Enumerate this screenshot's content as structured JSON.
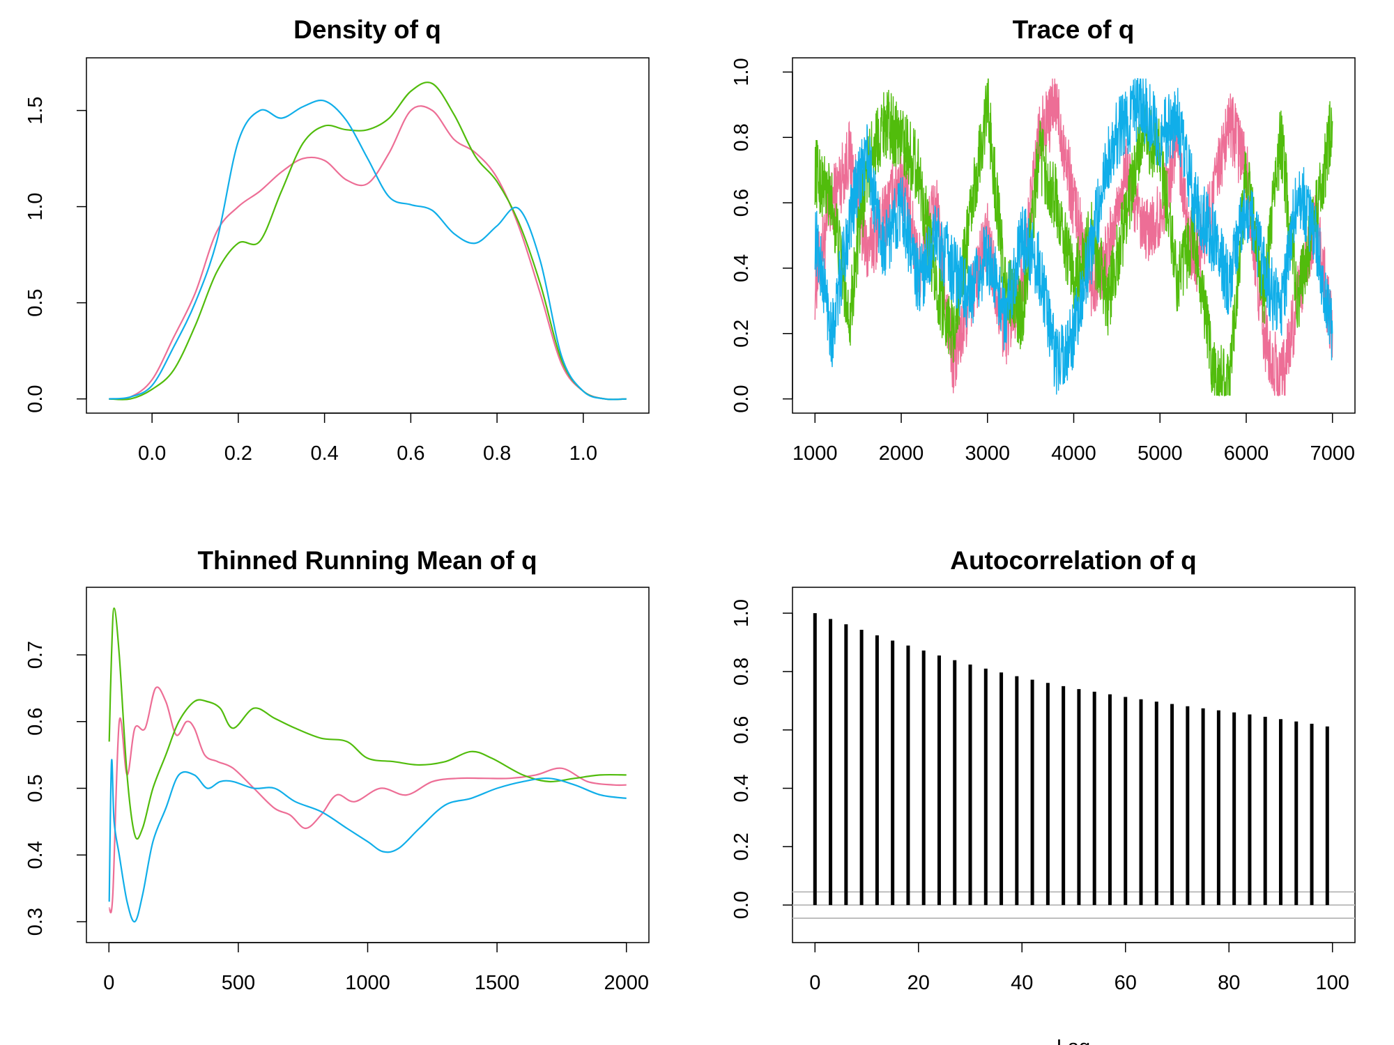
{
  "colors": {
    "chain1": "#ED6E96",
    "chain2": "#51BC0C",
    "chain3": "#10AEE9",
    "acf_bar": "#000000",
    "conf_line": "#BEBEBE"
  },
  "chart_data": [
    {
      "id": "density",
      "type": "line",
      "title": "Density of q",
      "xlabel": "",
      "ylabel": "",
      "xlim": [
        -0.1,
        1.1
      ],
      "ylim": [
        0,
        1.7
      ],
      "xticks": [
        0.0,
        0.2,
        0.4,
        0.6,
        0.8,
        1.0
      ],
      "xtick_labels": [
        "0.0",
        "0.2",
        "0.4",
        "0.6",
        "0.8",
        "1.0"
      ],
      "yticks": [
        0.0,
        0.5,
        1.0,
        1.5
      ],
      "ytick_labels": [
        "0.0",
        "0.5",
        "1.0",
        "1.5"
      ],
      "grid": false,
      "series": [
        {
          "color": "#ED6E96",
          "x": [
            -0.1,
            -0.05,
            0.0,
            0.05,
            0.1,
            0.15,
            0.2,
            0.25,
            0.3,
            0.35,
            0.4,
            0.45,
            0.5,
            0.55,
            0.6,
            0.65,
            0.7,
            0.75,
            0.8,
            0.85,
            0.9,
            0.95,
            1.0,
            1.05,
            1.1
          ],
          "y": [
            0.0,
            0.01,
            0.1,
            0.32,
            0.55,
            0.87,
            1.0,
            1.08,
            1.18,
            1.25,
            1.24,
            1.14,
            1.12,
            1.28,
            1.5,
            1.5,
            1.35,
            1.28,
            1.15,
            0.9,
            0.55,
            0.18,
            0.04,
            0.0,
            0.0
          ]
        },
        {
          "color": "#51BC0C",
          "x": [
            -0.1,
            -0.05,
            0.0,
            0.05,
            0.1,
            0.15,
            0.2,
            0.25,
            0.3,
            0.35,
            0.4,
            0.45,
            0.5,
            0.55,
            0.6,
            0.65,
            0.7,
            0.75,
            0.8,
            0.85,
            0.9,
            0.95,
            1.0,
            1.05,
            1.1
          ],
          "y": [
            0.0,
            0.0,
            0.05,
            0.15,
            0.38,
            0.66,
            0.81,
            0.82,
            1.08,
            1.33,
            1.42,
            1.4,
            1.4,
            1.46,
            1.6,
            1.64,
            1.48,
            1.26,
            1.13,
            0.92,
            0.6,
            0.2,
            0.04,
            0.0,
            0.0
          ]
        },
        {
          "color": "#10AEE9",
          "x": [
            -0.1,
            -0.05,
            0.0,
            0.05,
            0.1,
            0.15,
            0.2,
            0.25,
            0.3,
            0.35,
            0.4,
            0.45,
            0.5,
            0.55,
            0.6,
            0.65,
            0.7,
            0.75,
            0.8,
            0.85,
            0.9,
            0.95,
            1.0,
            1.05,
            1.1
          ],
          "y": [
            0.0,
            0.01,
            0.07,
            0.27,
            0.5,
            0.82,
            1.34,
            1.5,
            1.46,
            1.52,
            1.55,
            1.45,
            1.25,
            1.05,
            1.01,
            0.98,
            0.86,
            0.81,
            0.9,
            0.99,
            0.72,
            0.22,
            0.04,
            0.0,
            0.0
          ]
        }
      ]
    },
    {
      "id": "trace",
      "type": "line",
      "title": "Trace of q",
      "xlabel": "",
      "ylabel": "",
      "xlim": [
        1000,
        7000
      ],
      "ylim": [
        0,
        1
      ],
      "xticks": [
        1000,
        2000,
        3000,
        4000,
        5000,
        6000,
        7000
      ],
      "xtick_labels": [
        "1000",
        "2000",
        "3000",
        "4000",
        "5000",
        "6000",
        "7000"
      ],
      "yticks": [
        0.0,
        0.2,
        0.4,
        0.6,
        0.8,
        1.0
      ],
      "ytick_labels": [
        "0.0",
        "0.2",
        "0.4",
        "0.6",
        "0.8",
        "1.0"
      ],
      "grid": false,
      "series": [
        {
          "color": "#ED6E96",
          "x": [
            1000,
            1200,
            1400,
            1600,
            1800,
            2000,
            2200,
            2400,
            2600,
            2800,
            3000,
            3200,
            3400,
            3600,
            3800,
            4000,
            4200,
            4400,
            4600,
            4800,
            5000,
            5200,
            5400,
            5600,
            5800,
            6000,
            6200,
            6400,
            6600,
            6800,
            7000
          ],
          "y": [
            0.35,
            0.6,
            0.75,
            0.45,
            0.55,
            0.7,
            0.4,
            0.6,
            0.1,
            0.3,
            0.5,
            0.2,
            0.35,
            0.8,
            0.9,
            0.6,
            0.35,
            0.45,
            0.7,
            0.5,
            0.55,
            0.8,
            0.4,
            0.6,
            0.85,
            0.7,
            0.2,
            0.05,
            0.3,
            0.55,
            0.2
          ]
        },
        {
          "color": "#51BC0C",
          "x": [
            1000,
            1200,
            1400,
            1600,
            1800,
            2000,
            2200,
            2400,
            2600,
            2800,
            3000,
            3200,
            3400,
            3600,
            3800,
            4000,
            4200,
            4400,
            4600,
            4800,
            5000,
            5200,
            5400,
            5600,
            5800,
            6000,
            6200,
            6400,
            6600,
            6800,
            7000
          ],
          "y": [
            0.7,
            0.6,
            0.25,
            0.7,
            0.85,
            0.8,
            0.7,
            0.35,
            0.2,
            0.55,
            0.9,
            0.35,
            0.25,
            0.75,
            0.6,
            0.35,
            0.5,
            0.3,
            0.55,
            0.8,
            0.75,
            0.35,
            0.5,
            0.1,
            0.05,
            0.7,
            0.3,
            0.8,
            0.3,
            0.55,
            0.85
          ]
        },
        {
          "color": "#10AEE9",
          "x": [
            1000,
            1200,
            1400,
            1600,
            1800,
            2000,
            2200,
            2400,
            2600,
            2800,
            3000,
            3200,
            3400,
            3600,
            3800,
            4000,
            4200,
            4400,
            4600,
            4800,
            5000,
            5200,
            5400,
            5600,
            5800,
            6000,
            6200,
            6400,
            6600,
            6800,
            7000
          ],
          "y": [
            0.5,
            0.2,
            0.55,
            0.75,
            0.45,
            0.6,
            0.35,
            0.5,
            0.4,
            0.3,
            0.45,
            0.25,
            0.5,
            0.4,
            0.1,
            0.2,
            0.45,
            0.75,
            0.85,
            0.9,
            0.8,
            0.85,
            0.6,
            0.5,
            0.35,
            0.6,
            0.4,
            0.25,
            0.65,
            0.5,
            0.2
          ]
        }
      ]
    },
    {
      "id": "running_mean",
      "type": "line",
      "title": "Thinned Running Mean of q",
      "xlabel": "",
      "ylabel": "",
      "xlim": [
        0,
        2000
      ],
      "ylim": [
        0.29,
        0.78
      ],
      "xticks": [
        0,
        500,
        1000,
        1500,
        2000
      ],
      "xtick_labels": [
        "0",
        "500",
        "1000",
        "1500",
        "2000"
      ],
      "yticks": [
        0.3,
        0.4,
        0.5,
        0.6,
        0.7
      ],
      "ytick_labels": [
        "0.3",
        "0.4",
        "0.5",
        "0.6",
        "0.7"
      ],
      "grid": false,
      "series": [
        {
          "color": "#ED6E96",
          "x": [
            1,
            15,
            40,
            70,
            100,
            140,
            180,
            220,
            260,
            300,
            330,
            370,
            420,
            480,
            560,
            640,
            700,
            760,
            820,
            880,
            950,
            1050,
            1150,
            1250,
            1350,
            1450,
            1550,
            1650,
            1750,
            1850,
            1950,
            2000
          ],
          "y": [
            0.32,
            0.34,
            0.6,
            0.52,
            0.59,
            0.59,
            0.65,
            0.63,
            0.58,
            0.6,
            0.59,
            0.55,
            0.54,
            0.53,
            0.5,
            0.47,
            0.46,
            0.44,
            0.46,
            0.49,
            0.48,
            0.5,
            0.49,
            0.51,
            0.515,
            0.515,
            0.515,
            0.52,
            0.53,
            0.51,
            0.505,
            0.505
          ]
        },
        {
          "color": "#51BC0C",
          "x": [
            1,
            10,
            20,
            40,
            70,
            100,
            130,
            170,
            220,
            270,
            330,
            380,
            430,
            480,
            560,
            640,
            720,
            820,
            920,
            1000,
            1100,
            1200,
            1300,
            1400,
            1480,
            1600,
            1700,
            1800,
            1900,
            2000
          ],
          "y": [
            0.57,
            0.7,
            0.77,
            0.7,
            0.52,
            0.43,
            0.44,
            0.5,
            0.55,
            0.6,
            0.63,
            0.63,
            0.62,
            0.59,
            0.62,
            0.605,
            0.59,
            0.575,
            0.57,
            0.545,
            0.54,
            0.535,
            0.54,
            0.555,
            0.545,
            0.52,
            0.51,
            0.515,
            0.52,
            0.52
          ]
        },
        {
          "color": "#10AEE9",
          "x": [
            1,
            10,
            20,
            40,
            70,
            100,
            130,
            170,
            220,
            270,
            330,
            380,
            430,
            480,
            560,
            640,
            720,
            820,
            920,
            1000,
            1060,
            1120,
            1200,
            1300,
            1400,
            1500,
            1600,
            1700,
            1800,
            1900,
            2000
          ],
          "y": [
            0.33,
            0.54,
            0.45,
            0.4,
            0.33,
            0.3,
            0.34,
            0.42,
            0.47,
            0.52,
            0.52,
            0.5,
            0.51,
            0.51,
            0.5,
            0.5,
            0.48,
            0.465,
            0.44,
            0.42,
            0.405,
            0.41,
            0.44,
            0.475,
            0.485,
            0.5,
            0.51,
            0.515,
            0.505,
            0.49,
            0.485
          ]
        }
      ]
    },
    {
      "id": "acf",
      "type": "bar",
      "title": "Autocorrelation of q",
      "xlabel": "Lag",
      "ylabel": "",
      "xlim": [
        0,
        100
      ],
      "ylim": [
        -0.08,
        1.04
      ],
      "xticks": [
        0,
        20,
        40,
        60,
        80,
        100
      ],
      "xtick_labels": [
        "0",
        "20",
        "40",
        "60",
        "80",
        "100"
      ],
      "yticks": [
        0.0,
        0.2,
        0.4,
        0.6,
        0.8,
        1.0
      ],
      "ytick_labels": [
        "0.0",
        "0.2",
        "0.4",
        "0.6",
        "0.8",
        "1.0"
      ],
      "grid": false,
      "lags": [
        0,
        3,
        6,
        9,
        12,
        15,
        18,
        21,
        24,
        27,
        30,
        33,
        36,
        39,
        42,
        45,
        48,
        51,
        54,
        57,
        60,
        63,
        66,
        69,
        72,
        75,
        78,
        81,
        84,
        87,
        90,
        93,
        96,
        99
      ],
      "values": [
        1.0,
        0.98,
        0.962,
        0.943,
        0.924,
        0.906,
        0.889,
        0.872,
        0.855,
        0.839,
        0.824,
        0.81,
        0.797,
        0.784,
        0.772,
        0.761,
        0.75,
        0.74,
        0.731,
        0.722,
        0.713,
        0.705,
        0.697,
        0.689,
        0.681,
        0.674,
        0.667,
        0.66,
        0.653,
        0.645,
        0.637,
        0.629,
        0.621,
        0.612
      ],
      "conf_limits": [
        0.045,
        -0.045
      ],
      "zero_line": 0
    }
  ]
}
